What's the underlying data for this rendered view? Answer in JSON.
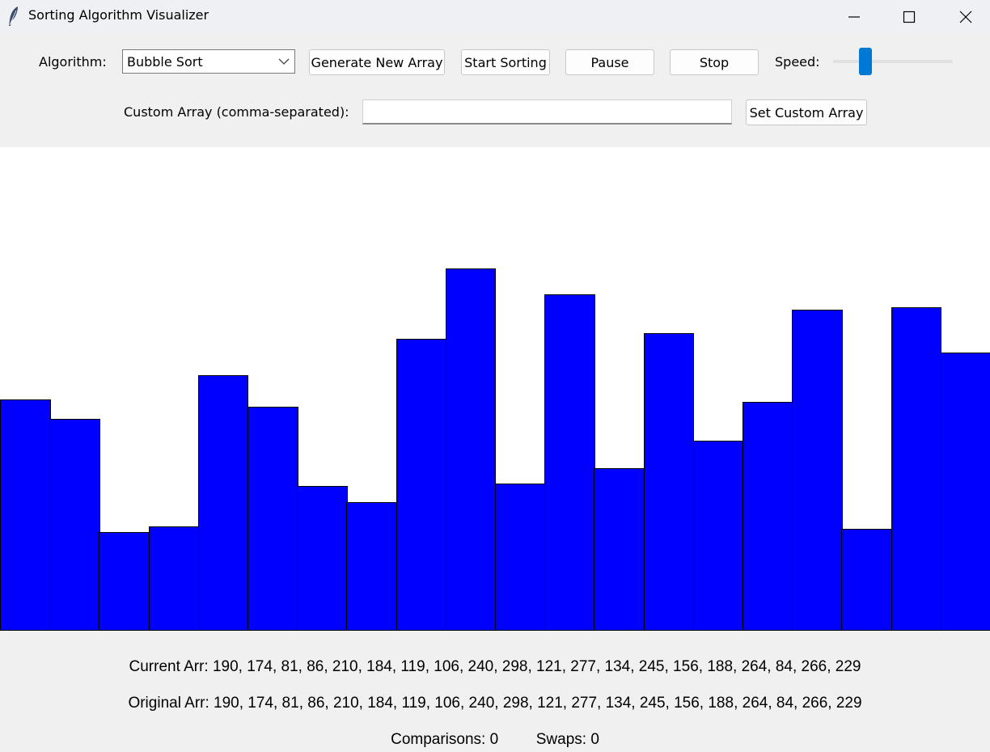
{
  "window": {
    "title": "Sorting Algorithm Visualizer",
    "icon": "feather-icon"
  },
  "controls": {
    "algorithm_label": "Algorithm:",
    "algorithm_value": "Bubble Sort",
    "generate_label": "Generate New Array",
    "start_label": "Start Sorting",
    "pause_label": "Pause",
    "stop_label": "Stop",
    "speed_label": "Speed:",
    "speed_level": 0.24,
    "custom_label": "Custom Array (comma-separated):",
    "custom_value": "",
    "set_custom_label": "Set Custom Array"
  },
  "colors": {
    "bar_fill": "#0000ff",
    "slider_accent": "#0078d4"
  },
  "array": [
    190,
    174,
    81,
    86,
    210,
    184,
    119,
    106,
    240,
    298,
    121,
    277,
    134,
    245,
    156,
    188,
    264,
    84,
    266,
    229
  ],
  "status": {
    "current": "Current Arr: 190, 174, 81, 86, 210, 184, 119, 106, 240, 298, 121, 277, 134, 245, 156, 188, 264, 84, 266, 229",
    "original": "Original Arr: 190, 174, 81, 86, 210, 184, 119, 106, 240, 298, 121, 277, 134, 245, 156, 188, 264, 84, 266, 229",
    "comparisons": "Comparisons: 0",
    "swaps": "Swaps: 0"
  }
}
